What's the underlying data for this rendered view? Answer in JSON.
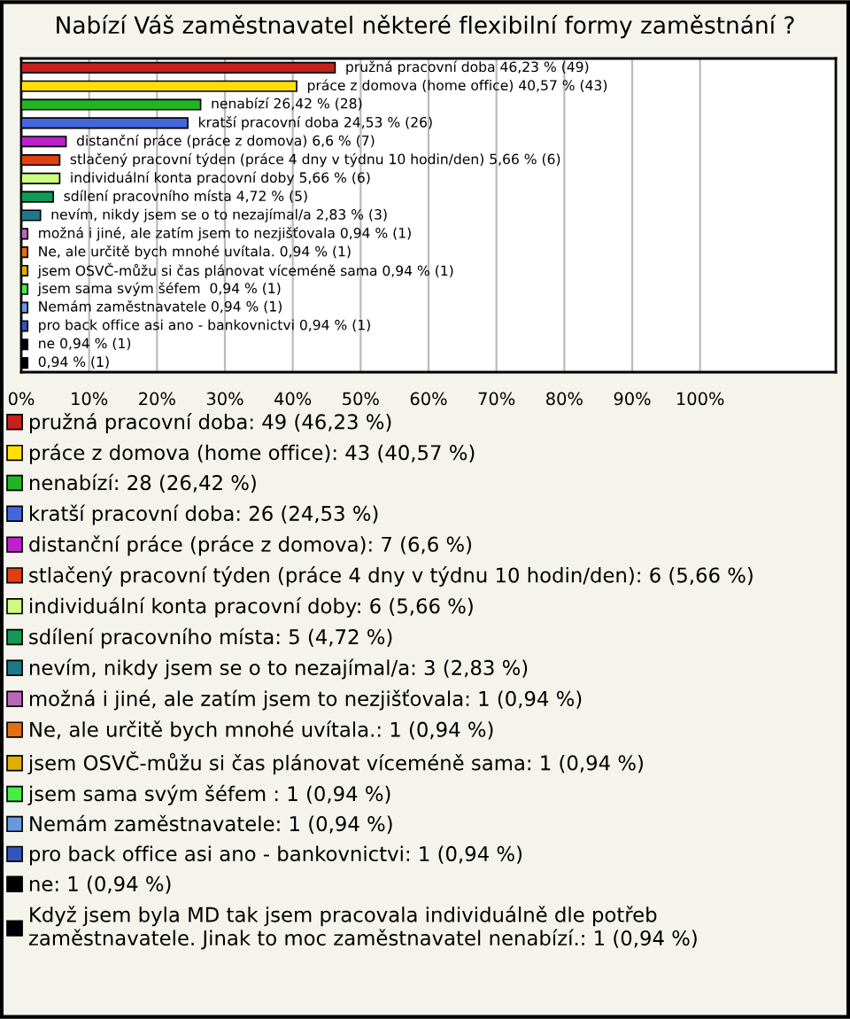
{
  "chart_data": {
    "type": "bar",
    "orientation": "horizontal",
    "stacked": true,
    "title": "Nabízí Váš zaměstnavatel některé flexibilní formy zaměstnání ?",
    "categories": [
      null,
      null,
      null,
      null,
      null,
      null,
      null,
      null,
      null,
      null,
      null,
      null,
      null,
      null,
      null,
      null,
      null
    ],
    "series": [
      {
        "name": "pružná pracovní doba: 49 (46,23 %)",
        "color": "#c8201c",
        "values": [
          46.23,
          null,
          null,
          null,
          null,
          null,
          null,
          null,
          null,
          null,
          null,
          null,
          null,
          null,
          null,
          null,
          null
        ],
        "value_labels": [
          "pružná pracovní doba 46,23 % (49)",
          null,
          null,
          null,
          null,
          null,
          null,
          null,
          null,
          null,
          null,
          null,
          null,
          null,
          null,
          null,
          null
        ]
      },
      {
        "name": "práce z domova (home office): 43 (40,57 %)",
        "color": "#ffe000",
        "values": [
          null,
          40.57,
          null,
          null,
          null,
          null,
          null,
          null,
          null,
          null,
          null,
          null,
          null,
          null,
          null,
          null,
          null
        ],
        "value_labels": [
          null,
          "práce z domova (home office) 40,57 % (43)",
          null,
          null,
          null,
          null,
          null,
          null,
          null,
          null,
          null,
          null,
          null,
          null,
          null,
          null,
          null
        ]
      },
      {
        "name": "nenabízí: 28 (26,42 %)",
        "color": "#22b422",
        "values": [
          null,
          null,
          26.42,
          null,
          null,
          null,
          null,
          null,
          null,
          null,
          null,
          null,
          null,
          null,
          null,
          null,
          null
        ],
        "value_labels": [
          null,
          null,
          "nenabízí 26,42 % (28)",
          null,
          null,
          null,
          null,
          null,
          null,
          null,
          null,
          null,
          null,
          null,
          null,
          null,
          null
        ]
      },
      {
        "name": "kratší pracovní doba: 26 (24,53 %)",
        "color": "#4466dd",
        "values": [
          null,
          null,
          null,
          24.53,
          null,
          null,
          null,
          null,
          null,
          null,
          null,
          null,
          null,
          null,
          null,
          null,
          null
        ],
        "value_labels": [
          null,
          null,
          null,
          "kratší pracovní doba 24,53 % (26)",
          null,
          null,
          null,
          null,
          null,
          null,
          null,
          null,
          null,
          null,
          null,
          null,
          null
        ]
      },
      {
        "name": "distanční práce (práce z domova): 7 (6,6 %)",
        "color": "#bb22cc",
        "values": [
          null,
          null,
          null,
          null,
          6.6,
          null,
          null,
          null,
          null,
          null,
          null,
          null,
          null,
          null,
          null,
          null,
          null
        ],
        "value_labels": [
          null,
          null,
          null,
          null,
          "distanční práce (práce z domova) 6,6 % (7)",
          null,
          null,
          null,
          null,
          null,
          null,
          null,
          null,
          null,
          null,
          null,
          null
        ]
      },
      {
        "name": "stlačený pracovní týden (práce 4 dny v týdnu 10 hodin/den): 6 (5,66 %)",
        "color": "#e04010",
        "values": [
          null,
          null,
          null,
          null,
          null,
          5.66,
          null,
          null,
          null,
          null,
          null,
          null,
          null,
          null,
          null,
          null,
          null
        ],
        "value_labels": [
          null,
          null,
          null,
          null,
          null,
          "stlačený pracovní týden (práce 4 dny v týdnu 10 hodin/den) 5,66 % (6)",
          null,
          null,
          null,
          null,
          null,
          null,
          null,
          null,
          null,
          null,
          null
        ]
      },
      {
        "name": "individuální konta pracovní doby: 6 (5,66 %)",
        "color": "#ccff80",
        "values": [
          null,
          null,
          null,
          null,
          null,
          null,
          5.66,
          null,
          null,
          null,
          null,
          null,
          null,
          null,
          null,
          null,
          null
        ],
        "value_labels": [
          null,
          null,
          null,
          null,
          null,
          null,
          "individuální konta pracovní doby 5,66 % (6)",
          null,
          null,
          null,
          null,
          null,
          null,
          null,
          null,
          null,
          null
        ]
      },
      {
        "name": "sdílení pracovního místa: 5 (4,72 %)",
        "color": "#119955",
        "values": [
          null,
          null,
          null,
          null,
          null,
          null,
          null,
          4.72,
          null,
          null,
          null,
          null,
          null,
          null,
          null,
          null,
          null
        ],
        "value_labels": [
          null,
          null,
          null,
          null,
          null,
          null,
          null,
          "sdílení pracovního místa 4,72 % (5)",
          null,
          null,
          null,
          null,
          null,
          null,
          null,
          null,
          null
        ]
      },
      {
        "name": "nevím, nikdy jsem se o to nezajímal/a: 3 (2,83 %)",
        "color": "#1a7a8a",
        "values": [
          null,
          null,
          null,
          null,
          null,
          null,
          null,
          null,
          2.83,
          null,
          null,
          null,
          null,
          null,
          null,
          null,
          null
        ],
        "value_labels": [
          null,
          null,
          null,
          null,
          null,
          null,
          null,
          null,
          "nevím, nikdy jsem se o to nezajímal/a 2,83 % (3)",
          null,
          null,
          null,
          null,
          null,
          null,
          null,
          null
        ]
      },
      {
        "name": "možná i jiné, ale zatím jsem to nezjišťovala: 1 (0,94 %)",
        "color": "#bb66bb",
        "values": [
          null,
          null,
          null,
          null,
          null,
          null,
          null,
          null,
          null,
          0.94,
          null,
          null,
          null,
          null,
          null,
          null,
          null
        ],
        "value_labels": [
          null,
          null,
          null,
          null,
          null,
          null,
          null,
          null,
          null,
          "možná i jiné, ale zatím jsem to nezjišťovala 0,94 % (1)",
          null,
          null,
          null,
          null,
          null,
          null,
          null
        ]
      },
      {
        "name": "Ne, ale určitě bych mnohé uvítala.: 1 (0,94 %)",
        "color": "#e07010",
        "values": [
          null,
          null,
          null,
          null,
          null,
          null,
          null,
          null,
          null,
          null,
          0.94,
          null,
          null,
          null,
          null,
          null,
          null
        ],
        "value_labels": [
          null,
          null,
          null,
          null,
          null,
          null,
          null,
          null,
          null,
          null,
          "Ne, ale určitě bych mnohé uvítala. 0,94 % (1)",
          null,
          null,
          null,
          null,
          null,
          null
        ]
      },
      {
        "name": "jsem OSVČ-můžu si čas plánovat víceméně sama: 1 (0,94 %)",
        "color": "#e0b000",
        "values": [
          null,
          null,
          null,
          null,
          null,
          null,
          null,
          null,
          null,
          null,
          null,
          0.94,
          null,
          null,
          null,
          null,
          null
        ],
        "value_labels": [
          null,
          null,
          null,
          null,
          null,
          null,
          null,
          null,
          null,
          null,
          null,
          "jsem OSVČ-můžu si čas plánovat víceméně sama 0,94 % (1)",
          null,
          null,
          null,
          null,
          null
        ]
      },
      {
        "name": "jsem sama svým šéfem : 1 (0,94 %)",
        "color": "#44ee44",
        "values": [
          null,
          null,
          null,
          null,
          null,
          null,
          null,
          null,
          null,
          null,
          null,
          null,
          0.94,
          null,
          null,
          null,
          null
        ],
        "value_labels": [
          null,
          null,
          null,
          null,
          null,
          null,
          null,
          null,
          null,
          null,
          null,
          null,
          "jsem sama svým šéfem  0,94 % (1)",
          null,
          null,
          null,
          null
        ]
      },
      {
        "name": "Nemám zaměstnavatele: 1 (0,94 %)",
        "color": "#6699dd",
        "values": [
          null,
          null,
          null,
          null,
          null,
          null,
          null,
          null,
          null,
          null,
          null,
          null,
          null,
          0.94,
          null,
          null,
          null
        ],
        "value_labels": [
          null,
          null,
          null,
          null,
          null,
          null,
          null,
          null,
          null,
          null,
          null,
          null,
          null,
          "Nemám zaměstnavatele 0,94 % (1)",
          null,
          null,
          null
        ]
      },
      {
        "name": "pro back office asi ano - bankovnictvi: 1 (0,94 %)",
        "color": "#3355bb",
        "values": [
          null,
          null,
          null,
          null,
          null,
          null,
          null,
          null,
          null,
          null,
          null,
          null,
          null,
          null,
          0.94,
          null,
          null
        ],
        "value_labels": [
          null,
          null,
          null,
          null,
          null,
          null,
          null,
          null,
          null,
          null,
          null,
          null,
          null,
          null,
          "pro back office asi ano - bankovnictvi 0,94 % (1)",
          null,
          null
        ]
      },
      {
        "name": "ne: 1 (0,94 %)",
        "color": "#000000",
        "values": [
          null,
          null,
          null,
          null,
          null,
          null,
          null,
          null,
          null,
          null,
          null,
          null,
          null,
          null,
          null,
          0.94,
          null
        ],
        "value_labels": [
          null,
          null,
          null,
          null,
          null,
          null,
          null,
          null,
          null,
          null,
          null,
          null,
          null,
          null,
          null,
          "ne 0,94 % (1)",
          null
        ]
      },
      {
        "name": "Když jsem byla MD tak jsem pracovala individuálně dle potřeb\nzaměstnavatele. Jinak to moc zaměstnavatel nenabízí.: 1 (0,94 %)",
        "color": "#000000",
        "values": [
          null,
          null,
          null,
          null,
          null,
          null,
          null,
          null,
          null,
          null,
          null,
          null,
          null,
          null,
          null,
          null,
          0.94
        ],
        "value_labels": [
          null,
          null,
          null,
          null,
          null,
          null,
          null,
          null,
          null,
          null,
          null,
          null,
          null,
          null,
          null,
          null,
          "0,94 % (1)"
        ]
      }
    ],
    "xlim": [
      0,
      120
    ],
    "xticks": [
      {
        "value": 0,
        "label": "0%"
      },
      {
        "value": 10,
        "label": "10%"
      },
      {
        "value": 20,
        "label": "20%"
      },
      {
        "value": 30,
        "label": "30%"
      },
      {
        "value": 40,
        "label": "40%"
      },
      {
        "value": 50,
        "label": "50%"
      },
      {
        "value": 60,
        "label": "60%"
      },
      {
        "value": 70,
        "label": "70%"
      },
      {
        "value": 80,
        "label": "80%"
      },
      {
        "value": 90,
        "label": "90%"
      },
      {
        "value": 100,
        "label": "100%"
      }
    ],
    "grid": "x",
    "legend": "bottom"
  }
}
